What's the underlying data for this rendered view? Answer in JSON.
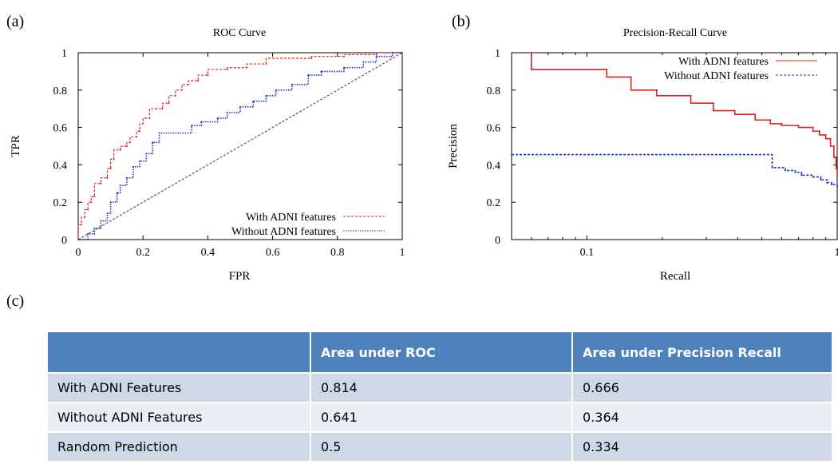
{
  "panels": {
    "a": "(a)",
    "b": "(b)",
    "c": "(c)"
  },
  "chart_data": [
    {
      "type": "line",
      "title": "ROC Curve",
      "xlabel": "FPR",
      "ylabel": "TPR",
      "xlim": [
        0,
        1
      ],
      "ylim": [
        0,
        1
      ],
      "xticks": [
        "0",
        "0.2",
        "0.4",
        "0.6",
        "0.8",
        "1"
      ],
      "yticks": [
        "0",
        "0.2",
        "0.4",
        "0.6",
        "0.8",
        "1"
      ],
      "legend_position": "bottom-right",
      "series": [
        {
          "name": "With ADNI features",
          "color": "#e02020",
          "style": "dashed",
          "points": [
            [
              0,
              0
            ],
            [
              0,
              0.08
            ],
            [
              0.01,
              0.08
            ],
            [
              0.01,
              0.12
            ],
            [
              0.02,
              0.12
            ],
            [
              0.02,
              0.16
            ],
            [
              0.03,
              0.16
            ],
            [
              0.03,
              0.2
            ],
            [
              0.04,
              0.2
            ],
            [
              0.04,
              0.23
            ],
            [
              0.05,
              0.23
            ],
            [
              0.05,
              0.3
            ],
            [
              0.07,
              0.3
            ],
            [
              0.07,
              0.33
            ],
            [
              0.09,
              0.33
            ],
            [
              0.09,
              0.38
            ],
            [
              0.1,
              0.38
            ],
            [
              0.1,
              0.43
            ],
            [
              0.11,
              0.43
            ],
            [
              0.11,
              0.48
            ],
            [
              0.13,
              0.48
            ],
            [
              0.13,
              0.5
            ],
            [
              0.15,
              0.5
            ],
            [
              0.15,
              0.52
            ],
            [
              0.16,
              0.52
            ],
            [
              0.16,
              0.55
            ],
            [
              0.18,
              0.55
            ],
            [
              0.18,
              0.58
            ],
            [
              0.19,
              0.58
            ],
            [
              0.19,
              0.62
            ],
            [
              0.2,
              0.62
            ],
            [
              0.2,
              0.65
            ],
            [
              0.22,
              0.65
            ],
            [
              0.22,
              0.7
            ],
            [
              0.24,
              0.7
            ],
            [
              0.24,
              0.7
            ],
            [
              0.26,
              0.7
            ],
            [
              0.26,
              0.73
            ],
            [
              0.28,
              0.73
            ],
            [
              0.28,
              0.77
            ],
            [
              0.3,
              0.77
            ],
            [
              0.3,
              0.8
            ],
            [
              0.32,
              0.8
            ],
            [
              0.32,
              0.83
            ],
            [
              0.34,
              0.83
            ],
            [
              0.34,
              0.85
            ],
            [
              0.37,
              0.85
            ],
            [
              0.37,
              0.88
            ],
            [
              0.4,
              0.88
            ],
            [
              0.4,
              0.91
            ],
            [
              0.46,
              0.91
            ],
            [
              0.46,
              0.92
            ],
            [
              0.52,
              0.92
            ],
            [
              0.52,
              0.94
            ],
            [
              0.58,
              0.94
            ],
            [
              0.58,
              0.97
            ],
            [
              0.72,
              0.97
            ],
            [
              0.72,
              0.98
            ],
            [
              0.82,
              0.98
            ],
            [
              0.82,
              0.99
            ],
            [
              0.92,
              0.99
            ],
            [
              0.92,
              1
            ],
            [
              1,
              1
            ]
          ]
        },
        {
          "name": "Without ADNI features",
          "color": "#2030c8",
          "style": "dotted",
          "points": [
            [
              0,
              0
            ],
            [
              0.03,
              0
            ],
            [
              0.03,
              0.03
            ],
            [
              0.05,
              0.03
            ],
            [
              0.05,
              0.06
            ],
            [
              0.07,
              0.06
            ],
            [
              0.07,
              0.1
            ],
            [
              0.09,
              0.1
            ],
            [
              0.09,
              0.14
            ],
            [
              0.1,
              0.14
            ],
            [
              0.1,
              0.2
            ],
            [
              0.12,
              0.2
            ],
            [
              0.12,
              0.25
            ],
            [
              0.13,
              0.25
            ],
            [
              0.13,
              0.29
            ],
            [
              0.15,
              0.29
            ],
            [
              0.15,
              0.33
            ],
            [
              0.17,
              0.33
            ],
            [
              0.17,
              0.39
            ],
            [
              0.19,
              0.39
            ],
            [
              0.19,
              0.42
            ],
            [
              0.21,
              0.42
            ],
            [
              0.21,
              0.46
            ],
            [
              0.23,
              0.46
            ],
            [
              0.23,
              0.52
            ],
            [
              0.25,
              0.52
            ],
            [
              0.25,
              0.57
            ],
            [
              0.35,
              0.57
            ],
            [
              0.35,
              0.61
            ],
            [
              0.38,
              0.61
            ],
            [
              0.38,
              0.63
            ],
            [
              0.43,
              0.63
            ],
            [
              0.43,
              0.65
            ],
            [
              0.46,
              0.65
            ],
            [
              0.46,
              0.68
            ],
            [
              0.5,
              0.68
            ],
            [
              0.5,
              0.71
            ],
            [
              0.54,
              0.71
            ],
            [
              0.54,
              0.74
            ],
            [
              0.58,
              0.74
            ],
            [
              0.58,
              0.77
            ],
            [
              0.61,
              0.77
            ],
            [
              0.61,
              0.8
            ],
            [
              0.66,
              0.8
            ],
            [
              0.66,
              0.83
            ],
            [
              0.71,
              0.83
            ],
            [
              0.71,
              0.88
            ],
            [
              0.75,
              0.88
            ],
            [
              0.75,
              0.9
            ],
            [
              0.82,
              0.9
            ],
            [
              0.82,
              0.92
            ],
            [
              0.88,
              0.92
            ],
            [
              0.88,
              0.95
            ],
            [
              0.92,
              0.95
            ],
            [
              0.92,
              0.98
            ],
            [
              0.97,
              0.98
            ],
            [
              0.97,
              1
            ],
            [
              1,
              1
            ]
          ]
        },
        {
          "color": "#555555",
          "style": "dashed",
          "points": [
            [
              0,
              0
            ],
            [
              1,
              1
            ]
          ]
        }
      ]
    },
    {
      "type": "line",
      "title": "Precision-Recall Curve",
      "xlabel": "Recall",
      "ylabel": "Precision",
      "xscale": "log",
      "xlim": [
        0.05,
        1
      ],
      "ylim": [
        0,
        1
      ],
      "xticks": [
        "0.1",
        "1"
      ],
      "yticks": [
        "0",
        "0.2",
        "0.4",
        "0.6",
        "0.8",
        "1"
      ],
      "legend_position": "top-right",
      "series": [
        {
          "name": "With ADNI features",
          "color": "#e02020",
          "style": "solid",
          "points": [
            [
              0.06,
              1
            ],
            [
              0.06,
              0.91
            ],
            [
              0.12,
              0.91
            ],
            [
              0.12,
              0.87
            ],
            [
              0.15,
              0.87
            ],
            [
              0.15,
              0.8
            ],
            [
              0.19,
              0.8
            ],
            [
              0.19,
              0.77
            ],
            [
              0.26,
              0.77
            ],
            [
              0.26,
              0.73
            ],
            [
              0.32,
              0.73
            ],
            [
              0.32,
              0.69
            ],
            [
              0.39,
              0.69
            ],
            [
              0.39,
              0.67
            ],
            [
              0.47,
              0.67
            ],
            [
              0.47,
              0.64
            ],
            [
              0.54,
              0.64
            ],
            [
              0.54,
              0.62
            ],
            [
              0.6,
              0.62
            ],
            [
              0.6,
              0.61
            ],
            [
              0.7,
              0.61
            ],
            [
              0.7,
              0.6
            ],
            [
              0.8,
              0.6
            ],
            [
              0.8,
              0.58
            ],
            [
              0.85,
              0.58
            ],
            [
              0.85,
              0.56
            ],
            [
              0.9,
              0.56
            ],
            [
              0.9,
              0.54
            ],
            [
              0.94,
              0.54
            ],
            [
              0.94,
              0.5
            ],
            [
              0.97,
              0.5
            ],
            [
              0.97,
              0.44
            ],
            [
              0.99,
              0.44
            ],
            [
              0.99,
              0.38
            ],
            [
              1,
              0.38
            ],
            [
              1,
              0.33
            ]
          ]
        },
        {
          "name": "Without ADNI features",
          "color": "#2030c8",
          "style": "dashed",
          "points": [
            [
              0.05,
              0.455
            ],
            [
              0.55,
              0.455
            ],
            [
              0.55,
              0.385
            ],
            [
              0.62,
              0.385
            ],
            [
              0.62,
              0.37
            ],
            [
              0.68,
              0.37
            ],
            [
              0.68,
              0.36
            ],
            [
              0.72,
              0.36
            ],
            [
              0.72,
              0.345
            ],
            [
              0.8,
              0.345
            ],
            [
              0.8,
              0.335
            ],
            [
              0.86,
              0.335
            ],
            [
              0.86,
              0.32
            ],
            [
              0.91,
              0.32
            ],
            [
              0.91,
              0.305
            ],
            [
              0.95,
              0.305
            ],
            [
              0.95,
              0.295
            ],
            [
              1,
              0.295
            ],
            [
              1,
              0.285
            ]
          ]
        }
      ]
    },
    {
      "type": "table",
      "columns": [
        "",
        "Area under ROC",
        "Area under Precision Recall"
      ],
      "rows": [
        [
          "With ADNI Features",
          "0.814",
          "0.666"
        ],
        [
          "Without ADNI Features",
          "0.641",
          "0.364"
        ],
        [
          "Random Prediction",
          "0.5",
          "0.334"
        ]
      ]
    }
  ]
}
